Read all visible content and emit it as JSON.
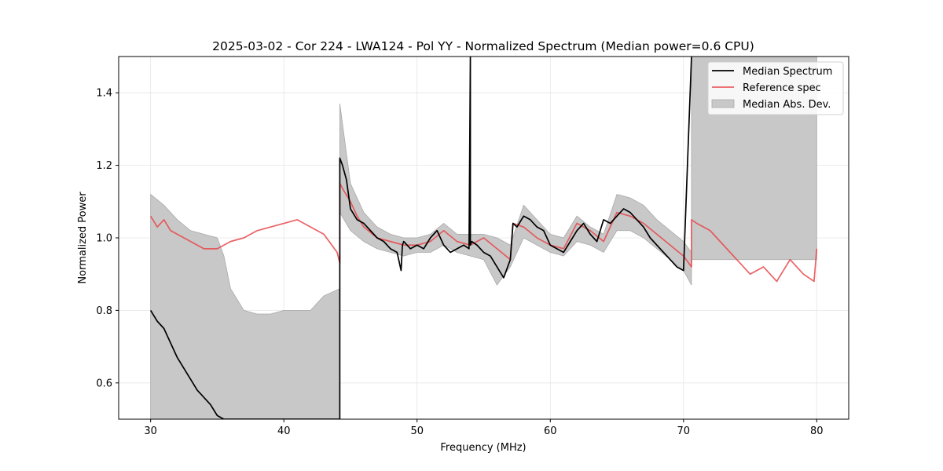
{
  "chart_data": {
    "type": "line",
    "title": "2025-03-02 - Cor 224 - LWA124 - Pol YY - Normalized Spectrum (Median power=0.6 CPU)",
    "xlabel": "Frequency (MHz)",
    "ylabel": "Normalized Power",
    "xlim": [
      27.6,
      82.4
    ],
    "ylim": [
      0.5,
      1.5
    ],
    "xticks": [
      30,
      40,
      50,
      60,
      70,
      80
    ],
    "yticks": [
      0.6,
      0.8,
      1.0,
      1.2,
      1.4
    ],
    "xtick_labels": [
      "30",
      "40",
      "50",
      "60",
      "70",
      "80"
    ],
    "ytick_labels": [
      "0.6",
      "0.8",
      "1.0",
      "1.2",
      "1.4"
    ],
    "grid": true,
    "legend_position": "top-right",
    "legend": [
      "Median Spectrum",
      "Reference spec",
      "Median Abs. Dev."
    ],
    "colors": {
      "median": "#000000",
      "reference": "#e8474a",
      "mad": "#c8c8c8"
    },
    "series": [
      {
        "name": "Median Spectrum",
        "x": [
          30.0,
          30.5,
          31.0,
          31.5,
          32.0,
          32.5,
          33.0,
          33.5,
          34.0,
          34.5,
          35.0,
          35.5,
          44.2,
          44.2,
          44.4,
          44.7,
          45.0,
          45.5,
          46.0,
          46.5,
          47.0,
          47.5,
          48.0,
          48.5,
          48.8,
          48.9,
          49.0,
          49.5,
          50.0,
          50.5,
          51.0,
          51.5,
          52.0,
          52.5,
          53.0,
          53.5,
          53.9,
          54.0,
          54.0,
          54.1,
          54.5,
          55.0,
          55.5,
          56.0,
          56.5,
          57.0,
          57.2,
          57.5,
          58.0,
          58.5,
          59.0,
          59.5,
          60.0,
          60.5,
          61.0,
          61.5,
          62.0,
          62.5,
          63.0,
          63.5,
          64.0,
          64.5,
          65.0,
          65.5,
          66.0,
          66.5,
          67.0,
          67.5,
          68.0,
          68.5,
          69.0,
          69.5,
          70.0,
          70.6,
          70.6
        ],
        "y": [
          0.8,
          0.77,
          0.75,
          0.71,
          0.67,
          0.64,
          0.61,
          0.58,
          0.56,
          0.54,
          0.51,
          0.5,
          0.5,
          1.22,
          1.2,
          1.16,
          1.08,
          1.05,
          1.04,
          1.02,
          1.0,
          0.99,
          0.97,
          0.96,
          0.91,
          0.98,
          0.99,
          0.97,
          0.98,
          0.97,
          1.0,
          1.02,
          0.98,
          0.96,
          0.97,
          0.98,
          0.97,
          1.5,
          0.98,
          0.99,
          0.98,
          0.96,
          0.95,
          0.92,
          0.89,
          0.94,
          1.04,
          1.03,
          1.06,
          1.05,
          1.03,
          1.02,
          0.98,
          0.97,
          0.96,
          0.99,
          1.02,
          1.04,
          1.01,
          0.99,
          1.05,
          1.04,
          1.06,
          1.08,
          1.07,
          1.05,
          1.03,
          1.0,
          0.98,
          0.96,
          0.94,
          0.92,
          0.91,
          1.5,
          1.5
        ]
      },
      {
        "name": "Reference spec",
        "x": [
          30.0,
          30.5,
          31.0,
          31.5,
          32.0,
          32.5,
          33.0,
          33.5,
          34.0,
          35.0,
          36.0,
          37.0,
          38.0,
          39.0,
          40.0,
          41.0,
          42.0,
          43.0,
          44.0,
          44.2,
          44.2,
          44.5,
          45.0,
          45.5,
          46.0,
          47.0,
          48.0,
          49.0,
          50.0,
          51.0,
          52.0,
          53.0,
          54.0,
          55.0,
          56.0,
          57.0,
          57.2,
          58.0,
          59.0,
          60.0,
          61.0,
          62.0,
          63.0,
          64.0,
          65.0,
          66.0,
          67.0,
          68.0,
          69.0,
          70.0,
          70.6,
          70.6,
          71.0,
          72.0,
          73.0,
          74.0,
          75.0,
          76.0,
          77.0,
          78.0,
          79.0,
          79.8,
          80.0
        ],
        "y": [
          1.06,
          1.03,
          1.05,
          1.02,
          1.01,
          1.0,
          0.99,
          0.98,
          0.97,
          0.97,
          0.99,
          1.0,
          1.02,
          1.03,
          1.04,
          1.05,
          1.03,
          1.01,
          0.96,
          0.93,
          1.15,
          1.13,
          1.1,
          1.06,
          1.03,
          1.0,
          0.99,
          0.98,
          0.98,
          0.99,
          1.02,
          0.99,
          0.98,
          1.0,
          0.97,
          0.94,
          1.04,
          1.03,
          1.0,
          0.98,
          0.97,
          1.04,
          1.02,
          0.99,
          1.07,
          1.06,
          1.04,
          1.01,
          0.98,
          0.95,
          0.92,
          1.05,
          1.04,
          1.02,
          0.98,
          0.94,
          0.9,
          0.92,
          0.88,
          0.94,
          0.9,
          0.88,
          0.97
        ]
      },
      {
        "name": "Median Abs. Dev.",
        "x": [
          30.0,
          31.0,
          32.0,
          33.0,
          34.0,
          35.0,
          35.5,
          36.0,
          37.0,
          38.0,
          39.0,
          40.0,
          41.0,
          42.0,
          43.0,
          44.2,
          44.2,
          45.0,
          46.0,
          47.0,
          48.0,
          49.0,
          50.0,
          51.0,
          52.0,
          53.0,
          54.0,
          55.0,
          56.0,
          57.0,
          58.0,
          59.0,
          60.0,
          61.0,
          62.0,
          63.0,
          64.0,
          65.0,
          66.0,
          67.0,
          68.0,
          69.0,
          70.0,
          70.6,
          70.6,
          80.0
        ],
        "upper": [
          1.12,
          1.09,
          1.05,
          1.02,
          1.01,
          1.0,
          0.95,
          0.86,
          0.8,
          0.79,
          0.79,
          0.8,
          0.8,
          0.8,
          0.84,
          0.86,
          1.37,
          1.15,
          1.07,
          1.03,
          1.01,
          1.0,
          1.0,
          1.01,
          1.04,
          1.01,
          1.01,
          1.01,
          1.0,
          0.98,
          1.09,
          1.05,
          1.01,
          1.0,
          1.06,
          1.03,
          1.01,
          1.12,
          1.11,
          1.09,
          1.05,
          1.02,
          0.99,
          0.96,
          1.5,
          1.5
        ],
        "lower": [
          0.5,
          0.5,
          0.5,
          0.5,
          0.5,
          0.5,
          0.5,
          0.5,
          0.5,
          0.5,
          0.5,
          0.5,
          0.5,
          0.5,
          0.5,
          0.5,
          1.07,
          1.02,
          0.99,
          0.97,
          0.96,
          0.95,
          0.96,
          0.96,
          0.98,
          0.96,
          0.95,
          0.94,
          0.87,
          0.92,
          1.0,
          0.98,
          0.96,
          0.95,
          0.99,
          0.98,
          0.96,
          1.02,
          1.02,
          1.0,
          0.97,
          0.94,
          0.91,
          0.87,
          0.94,
          0.94
        ]
      }
    ]
  }
}
